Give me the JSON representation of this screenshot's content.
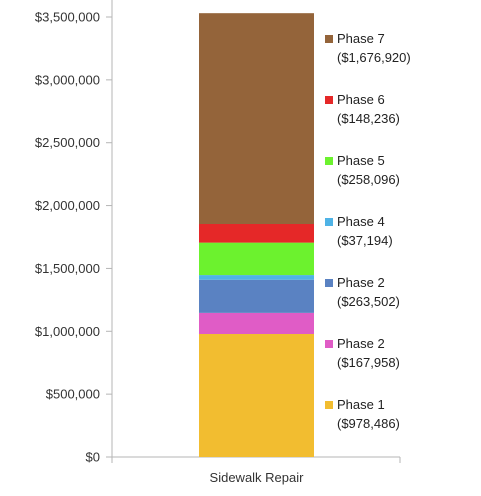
{
  "chart_data": {
    "type": "bar",
    "stacked": true,
    "categories": [
      "Sidewalk Repair"
    ],
    "ylim": [
      0,
      3500000
    ],
    "y_ticks": [
      "$0",
      "$500,000",
      "$1,000,000",
      "$1,500,000",
      "$2,000,000",
      "$2,500,000",
      "$3,000,000",
      "$3,500,000"
    ],
    "y_tick_values": [
      0,
      500000,
      1000000,
      1500000,
      2000000,
      2500000,
      3000000,
      3500000
    ],
    "grid": false,
    "legend_position": "right",
    "series": [
      {
        "name": "Phase 1",
        "value_label": "($978,486)",
        "values": [
          978486
        ],
        "color": "#F2BD30"
      },
      {
        "name": "Phase 2",
        "value_label": "($167,958)",
        "values": [
          167958
        ],
        "color": "#E05CC6"
      },
      {
        "name": "Phase 2",
        "value_label": "($263,502)",
        "values": [
          263502
        ],
        "color": "#5A82C2"
      },
      {
        "name": "Phase 4",
        "value_label": "($37,194)",
        "values": [
          37194
        ],
        "color": "#4FB3E6"
      },
      {
        "name": "Phase 5",
        "value_label": "($258,096)",
        "values": [
          258096
        ],
        "color": "#6CF22E"
      },
      {
        "name": "Phase 6",
        "value_label": "($148,236)",
        "values": [
          148236
        ],
        "color": "#E52828"
      },
      {
        "name": "Phase 7",
        "value_label": "($1,676,920)",
        "values": [
          1676920
        ],
        "color": "#94643A"
      }
    ]
  }
}
